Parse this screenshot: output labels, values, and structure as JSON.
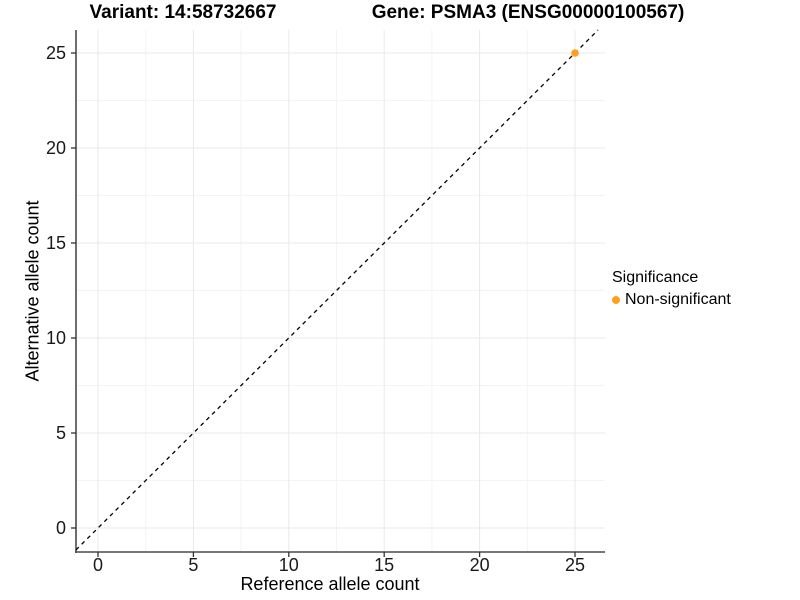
{
  "titles": {
    "variant": "Variant: 14:58732667",
    "gene": "Gene: PSMA3 (ENSG00000100567)"
  },
  "chart_data": {
    "type": "scatter",
    "title_left": "Variant: 14:58732667",
    "title_right": "Gene: PSMA3 (ENSG00000100567)",
    "xlabel": "Reference allele count",
    "ylabel": "Alternative allele count",
    "xlim": [
      -1.15,
      26.2
    ],
    "ylim": [
      -1.26,
      26.2
    ],
    "x_major_ticks": [
      0,
      5,
      10,
      15,
      20,
      25
    ],
    "y_major_ticks": [
      0,
      5,
      10,
      15,
      20,
      25
    ],
    "minor_gridlines": true,
    "grid": true,
    "points": [
      {
        "x": 25,
        "y": 25,
        "series": "Non-significant"
      }
    ],
    "abline": {
      "slope": 1,
      "intercept": 0,
      "style": "dashed"
    },
    "legend": {
      "title": "Significance",
      "position": "right",
      "items": [
        {
          "label": "Non-significant",
          "color": "#FFA11E"
        }
      ]
    }
  },
  "colors": {
    "point": "#FFA11E",
    "abline": "#000000",
    "axis_line": "#4a4a4a",
    "tick_mark": "#333333",
    "grid_major": "#e9e9e9",
    "grid_minor": "#f4f4f4",
    "background": "#ffffff"
  }
}
